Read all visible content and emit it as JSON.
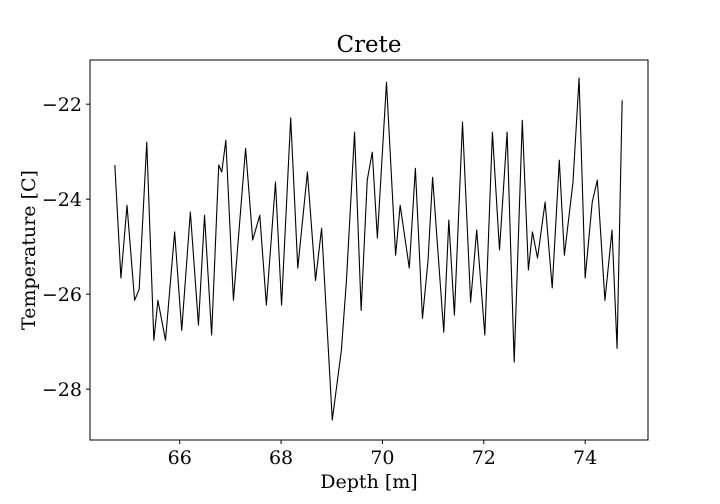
{
  "chart_data": {
    "type": "line",
    "title": "Crete",
    "x_label": "Depth [m]",
    "y_label": "Temperature [C]",
    "x": [
      64.72,
      64.84,
      64.96,
      65.11,
      65.2,
      65.35,
      65.49,
      65.57,
      65.72,
      65.9,
      66.04,
      66.21,
      66.37,
      66.49,
      66.63,
      66.77,
      66.83,
      66.91,
      67.06,
      67.3,
      67.44,
      67.58,
      67.71,
      67.89,
      68.01,
      68.19,
      68.33,
      68.52,
      68.68,
      68.8,
      69.01,
      69.19,
      69.29,
      69.45,
      69.58,
      69.7,
      69.8,
      69.9,
      70.08,
      70.26,
      70.35,
      70.53,
      70.65,
      70.79,
      70.9,
      70.99,
      71.21,
      71.31,
      71.42,
      71.58,
      71.74,
      71.86,
      72.02,
      72.17,
      72.31,
      72.46,
      72.6,
      72.76,
      72.88,
      72.96,
      73.06,
      73.21,
      73.35,
      73.49,
      73.59,
      73.76,
      73.88,
      74.0,
      74.14,
      74.24,
      74.39,
      74.53,
      74.63,
      74.73
    ],
    "series": [
      {
        "name": "Temperature",
        "color": "#000000",
        "values": [
          -23.28,
          -25.66,
          -24.13,
          -26.13,
          -25.9,
          -22.8,
          -26.97,
          -26.13,
          -26.97,
          -24.69,
          -26.76,
          -24.27,
          -26.65,
          -24.34,
          -26.86,
          -23.28,
          -23.43,
          -22.76,
          -26.13,
          -22.93,
          -24.86,
          -24.34,
          -26.23,
          -23.64,
          -26.23,
          -22.29,
          -25.45,
          -23.43,
          -25.71,
          -24.61,
          -28.65,
          -27.18,
          -25.71,
          -22.59,
          -26.34,
          -23.6,
          -23.01,
          -24.82,
          -21.54,
          -25.18,
          -24.13,
          -25.45,
          -23.35,
          -26.51,
          -25.29,
          -23.54,
          -26.8,
          -24.44,
          -26.44,
          -22.38,
          -26.17,
          -24.65,
          -26.86,
          -22.59,
          -25.07,
          -22.59,
          -27.43,
          -22.34,
          -25.49,
          -24.69,
          -25.24,
          -24.06,
          -25.87,
          -23.18,
          -25.18,
          -23.64,
          -21.45,
          -25.66,
          -24.06,
          -23.6,
          -26.13,
          -24.65,
          -27.14,
          -21.92
        ]
      }
    ],
    "xlim": [
      64.23,
      75.24
    ],
    "ylim": [
      -29.07,
      -21.07
    ],
    "xticks": [
      66,
      68,
      70,
      72,
      74
    ],
    "yticks": [
      {
        "value": -22,
        "label": "−22"
      },
      {
        "value": -24,
        "label": "−24"
      },
      {
        "value": -26,
        "label": "−26"
      },
      {
        "value": -28,
        "label": "−28"
      }
    ],
    "grid": false
  }
}
